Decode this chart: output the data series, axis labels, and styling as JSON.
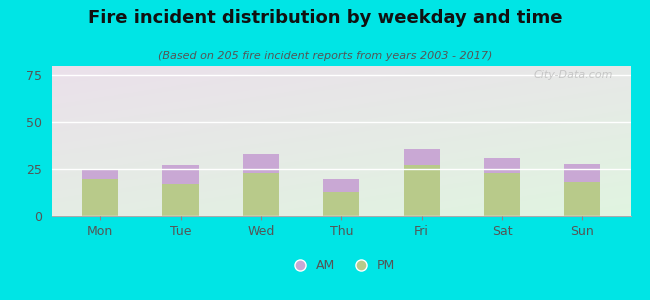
{
  "days": [
    "Mon",
    "Tue",
    "Wed",
    "Thu",
    "Fri",
    "Sat",
    "Sun"
  ],
  "pm_values": [
    20,
    17,
    23,
    13,
    27,
    23,
    18
  ],
  "am_values": [
    5,
    10,
    10,
    7,
    9,
    8,
    10
  ],
  "am_color": "#c9a8d4",
  "pm_color": "#b8ca8a",
  "title": "Fire incident distribution by weekday and time",
  "subtitle": "(Based on 205 fire incident reports from years 2003 - 2017)",
  "ylim": [
    0,
    80
  ],
  "yticks": [
    0,
    25,
    50,
    75
  ],
  "background_color": "#00e5e5",
  "watermark": "City-Data.com",
  "bar_width": 0.45,
  "title_fontsize": 13,
  "subtitle_fontsize": 8
}
